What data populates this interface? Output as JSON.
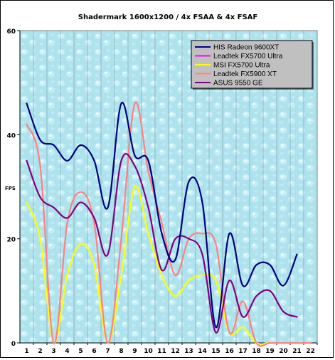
{
  "chart_data": {
    "type": "line",
    "title": "Shadermark 1600x1200 / 4x FSAA & 4x FSAF",
    "xlabel": "",
    "ylabel": "FPS",
    "x": [
      1,
      2,
      3,
      4,
      5,
      6,
      7,
      8,
      9,
      10,
      11,
      12,
      13,
      14,
      15,
      16,
      17,
      18,
      19,
      20,
      21,
      22
    ],
    "ylim": [
      0,
      60
    ],
    "yticks": [
      0,
      20,
      40,
      60
    ],
    "grid": "vertical",
    "legend": "top-right",
    "series": [
      {
        "name": "HIS Radeon 9600XT",
        "color": "#000080",
        "values": [
          46,
          39,
          38,
          35,
          38,
          35,
          26,
          46,
          36,
          35,
          21,
          16,
          31,
          27,
          3,
          21,
          11,
          15,
          15,
          11,
          17,
          null
        ]
      },
      {
        "name": "Leadtek FX5700 Ultra",
        "color": "#ff00ff",
        "values": [
          null,
          null,
          null,
          null,
          null,
          null,
          null,
          null,
          null,
          null,
          null,
          null,
          null,
          null,
          null,
          null,
          null,
          null,
          null,
          null,
          null,
          null
        ]
      },
      {
        "name": "MSI FX5700 Ultra",
        "color": "#ffff00",
        "values": [
          27,
          20,
          0,
          13,
          19,
          15,
          0,
          13,
          30,
          21,
          13,
          9,
          12,
          13,
          12,
          2,
          3,
          0,
          0,
          0,
          0,
          0
        ]
      },
      {
        "name": "Leadtek FX5900 XT",
        "color": "#ff8080",
        "values": [
          42,
          34,
          0,
          23,
          29,
          23,
          0,
          20,
          46,
          33,
          23,
          13,
          20,
          21,
          19,
          2,
          8,
          0,
          0,
          0,
          0,
          0
        ]
      },
      {
        "name": "ASUS 9550 GE",
        "color": "#800080",
        "values": [
          35,
          28,
          26,
          24,
          27,
          24,
          17,
          35,
          34,
          26,
          14,
          20,
          20,
          17,
          2,
          12,
          5,
          9,
          10,
          6,
          5,
          null
        ]
      }
    ]
  }
}
